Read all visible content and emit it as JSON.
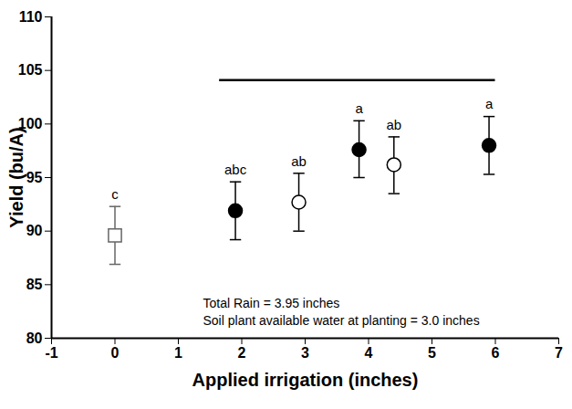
{
  "chart_data": {
    "type": "scatter",
    "x_label": "Applied irrigation (inches)",
    "y_label": "Yield (bu/A)",
    "xlim": [
      -1,
      7
    ],
    "xticks": [
      -1,
      0,
      1,
      2,
      3,
      4,
      5,
      6,
      7
    ],
    "ylim": [
      80,
      110
    ],
    "yticks": [
      80,
      85,
      90,
      95,
      100,
      105,
      110
    ],
    "series": [
      {
        "marker": "square-open",
        "color": "#666666",
        "x": [
          0
        ],
        "values": [
          89.6
        ],
        "error_low": [
          86.9
        ],
        "error_high": [
          92.3
        ],
        "labels": [
          "c"
        ]
      },
      {
        "marker": "circle",
        "color": "#000000",
        "x": [
          1.9,
          3.85,
          5.9
        ],
        "values": [
          91.9,
          97.6,
          98.0
        ],
        "error_low": [
          89.2,
          95.0,
          95.3
        ],
        "error_high": [
          94.6,
          100.3,
          100.7
        ],
        "labels": [
          "abc",
          "a",
          "a"
        ]
      },
      {
        "marker": "circle-open",
        "color": "#000000",
        "x": [
          2.9,
          4.4
        ],
        "values": [
          92.7,
          96.2
        ],
        "error_low": [
          90.0,
          93.5
        ],
        "error_high": [
          95.4,
          98.8
        ],
        "labels": [
          "ab",
          "ab"
        ]
      }
    ],
    "bracket": {
      "x1": 1.65,
      "x2": 6.0,
      "y": 104.1
    },
    "annotations": [
      "Total Rain = 3.95 inches",
      "Soil plant available water at planting = 3.0 inches"
    ]
  }
}
